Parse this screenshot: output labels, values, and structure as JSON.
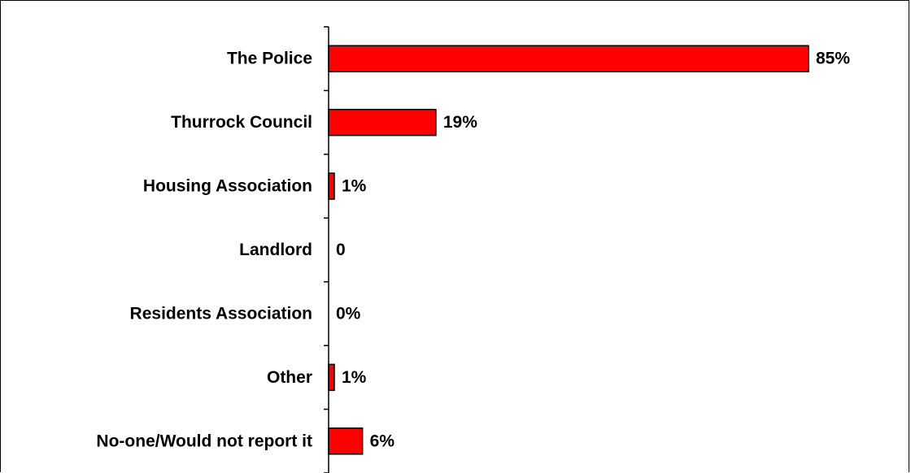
{
  "chart_data": {
    "type": "bar",
    "orientation": "horizontal",
    "title": "",
    "xlabel": "",
    "ylabel": "",
    "categories": [
      "The Police",
      "Thurrock Council",
      "Housing Association",
      "Landlord",
      "Residents Association",
      "Other",
      "No-one/Would not report it"
    ],
    "values": [
      85,
      19,
      1,
      0,
      0,
      1,
      6
    ],
    "data_labels": [
      "85%",
      "19%",
      "1%",
      "0",
      "0%",
      "1%",
      "6%"
    ],
    "xlim": [
      0,
      85
    ],
    "grid": false,
    "legend": "none",
    "colors": {
      "bar_fill": "#ff0000",
      "bar_stroke": "#000000",
      "text": "#000000",
      "axis": "#000000"
    }
  }
}
